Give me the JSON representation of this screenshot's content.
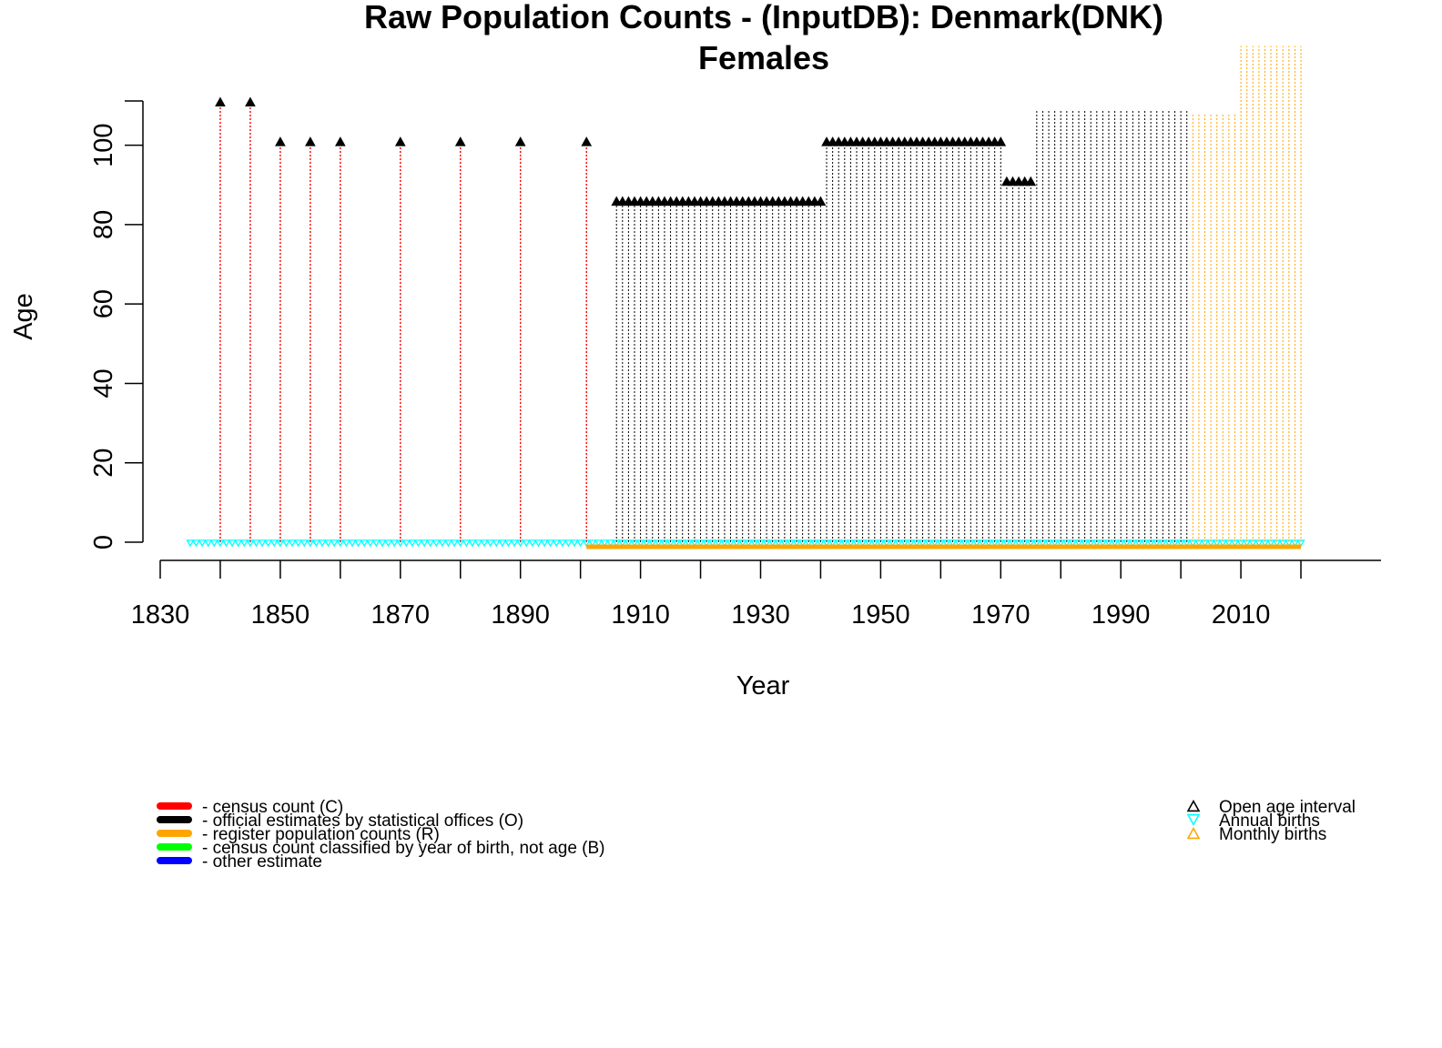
{
  "chart_data": {
    "type": "scatter",
    "title": "Raw Population Counts - (InputDB): Denmark(DNK)",
    "subtitle": "Females",
    "xlabel": "Year",
    "ylabel": "Age",
    "xlim": [
      1830,
      2025
    ],
    "ylim": [
      0,
      110
    ],
    "x_ticks": [
      1830,
      1850,
      1870,
      1890,
      1910,
      1930,
      1950,
      1970,
      1990,
      2010
    ],
    "y_ticks": [
      0,
      20,
      40,
      60,
      80,
      100
    ],
    "grid": false,
    "colors": {
      "census": "#ff0000",
      "official": "#000000",
      "register": "#ffa500",
      "birth_cohort": "#00ff00",
      "other": "#0000ff",
      "annual_births": "#00ffff",
      "monthly_births": "#ffa500"
    },
    "series": [
      {
        "name": "- census count (C)",
        "color": "#ff0000",
        "x": [
          1840,
          1845,
          1850,
          1855,
          1860,
          1870,
          1880,
          1890,
          1901
        ],
        "open_age": [
          110,
          110,
          100,
          100,
          100,
          100,
          100,
          100,
          100
        ]
      },
      {
        "name": "- official estimates by statistical offices (O)",
        "color": "#000000",
        "segments": [
          {
            "from": 1906,
            "to": 1940,
            "open_age": 85,
            "marker": true
          },
          {
            "from": 1941,
            "to": 1970,
            "open_age": 100,
            "marker": true
          },
          {
            "from": 1971,
            "to": 1975,
            "open_age": 90,
            "marker": true
          },
          {
            "from": 1976,
            "to": 2001,
            "open_age": 109,
            "marker": false
          }
        ]
      },
      {
        "name": "- register population counts (R)",
        "color": "#ffa500",
        "segments": [
          {
            "from": 2002,
            "to": 2009,
            "open_age": 108
          },
          {
            "from": 2010,
            "to": 2020,
            "open_age": 125
          }
        ],
        "baseline_from": 1901,
        "baseline_to": 2020
      },
      {
        "name": "- census count classified by year of birth, not age (B)",
        "color": "#00ff00"
      },
      {
        "name": "- other estimate",
        "color": "#0000ff"
      }
    ],
    "births": {
      "annual": {
        "from": 1835,
        "to": 2020,
        "color": "#00ffff"
      },
      "monthly": {
        "from": 1901,
        "to": 2020,
        "color": "#ffa500"
      }
    },
    "legend_left": [
      {
        "label": "- census count (C)",
        "color": "#ff0000"
      },
      {
        "label": "- official estimates by statistical offices (O)",
        "color": "#000000"
      },
      {
        "label": "- register population counts (R)",
        "color": "#ffa500"
      },
      {
        "label": "- census count classified by year of birth, not age (B)",
        "color": "#00ff00"
      },
      {
        "label": "- other estimate",
        "color": "#0000ff"
      }
    ],
    "legend_right": [
      {
        "label": "Open age interval",
        "symbol": "triangle-up",
        "color": "#000000"
      },
      {
        "label": "Annual births",
        "symbol": "triangle-down",
        "color": "#00ffff"
      },
      {
        "label": "Monthly births",
        "symbol": "triangle-up",
        "color": "#ffa500"
      }
    ],
    "legend_left_position": "bottom-left",
    "legend_right_position": "bottom-right"
  }
}
